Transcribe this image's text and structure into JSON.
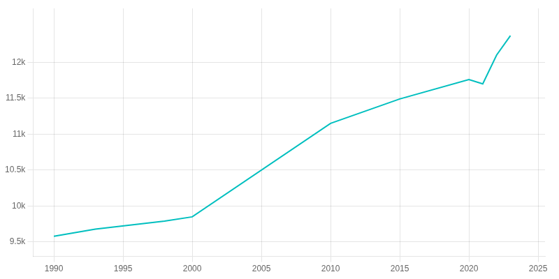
{
  "chart_data": {
    "type": "line",
    "x": [
      1990,
      1993,
      1998,
      2000,
      2010,
      2015,
      2020,
      2021,
      2022,
      2023
    ],
    "values": [
      9580,
      9680,
      9790,
      9850,
      11150,
      11490,
      11760,
      11700,
      12100,
      12370
    ],
    "color": "#00BFBF",
    "xlim": [
      1988.5,
      2025.5
    ],
    "xticks": [
      1990,
      1995,
      2000,
      2005,
      2010,
      2015,
      2020,
      2025
    ],
    "ylim": [
      9300,
      12750
    ],
    "yticks": [
      {
        "value": 9500,
        "label": "9.5k"
      },
      {
        "value": 10000,
        "label": "10k"
      },
      {
        "value": 10500,
        "label": "10.5k"
      },
      {
        "value": 11000,
        "label": "11k"
      },
      {
        "value": 11500,
        "label": "11.5k"
      },
      {
        "value": 12000,
        "label": "12k"
      }
    ],
    "grid": true
  }
}
